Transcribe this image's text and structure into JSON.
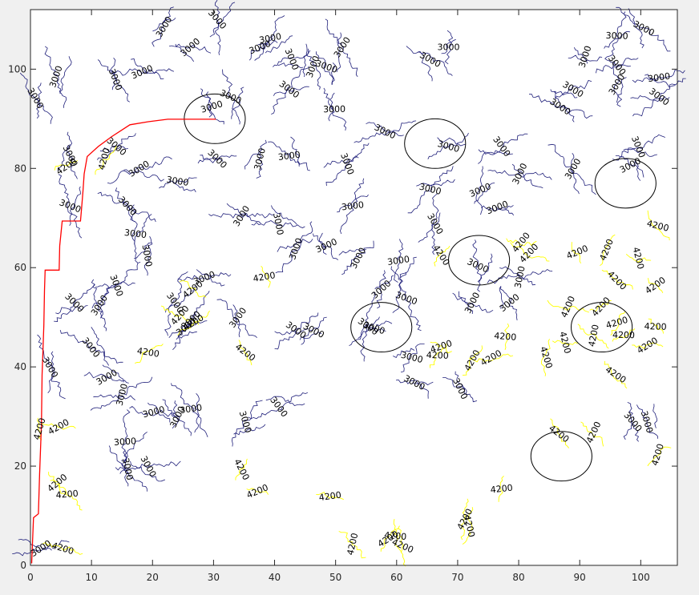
{
  "chart_data": {
    "type": "contour",
    "title": "",
    "xlabel": "",
    "ylabel": "",
    "xlim": [
      0,
      106
    ],
    "ylim": [
      0,
      112
    ],
    "xticks": [
      0,
      10,
      20,
      30,
      40,
      50,
      60,
      70,
      80,
      90,
      100
    ],
    "yticks": [
      0,
      20,
      40,
      60,
      80,
      100
    ],
    "xtick_labels": [
      "0",
      "10",
      "20",
      "30",
      "40",
      "50",
      "60",
      "70",
      "80",
      "90",
      "100"
    ],
    "ytick_labels": [
      "0",
      "20",
      "40",
      "60",
      "80",
      "100"
    ],
    "grid": false,
    "legend": "none",
    "colors": {
      "contour_3000": "#1f1f7a",
      "contour_4200": "#ffff00",
      "path": "#ff0000",
      "circles": "#000000",
      "axes_bg": "#ffffff",
      "figure_bg": "#f0f0f0"
    },
    "contour_levels": [
      3000,
      4200
    ],
    "contour_label_3000": [
      [
        21.9,
        108.5
      ],
      [
        30.6,
        110
      ],
      [
        4.2,
        98.5
      ],
      [
        0.8,
        94.1
      ],
      [
        13.9,
        97.9
      ],
      [
        18.3,
        99.4
      ],
      [
        26.2,
        104.4
      ],
      [
        29.7,
        92.4
      ],
      [
        32.8,
        94.4
      ],
      [
        37.6,
        104.4
      ],
      [
        39.3,
        106.2
      ],
      [
        42.8,
        102
      ],
      [
        46.3,
        100.5
      ],
      [
        51.1,
        104.4
      ],
      [
        48.5,
        100.5
      ],
      [
        42.4,
        95.9
      ],
      [
        49.8,
        91.9
      ],
      [
        58.1,
        87.4
      ],
      [
        68.5,
        104.4
      ],
      [
        65.5,
        101.9
      ],
      [
        68.5,
        84.4
      ],
      [
        77.2,
        84.4
      ],
      [
        90.9,
        102.5
      ],
      [
        96.1,
        100.8
      ],
      [
        96.1,
        106.7
      ],
      [
        100.5,
        108.2
      ],
      [
        6.5,
        82.5
      ],
      [
        14.1,
        84.4
      ],
      [
        17.8,
        79.9
      ],
      [
        24.1,
        77.4
      ],
      [
        30.6,
        81.9
      ],
      [
        37.6,
        81.9
      ],
      [
        42.4,
        82.5
      ],
      [
        51.9,
        80.9
      ],
      [
        52.8,
        72.4
      ],
      [
        65.5,
        75.8
      ],
      [
        73.7,
        75.6
      ],
      [
        76.5,
        72.1
      ],
      [
        88.9,
        95.9
      ],
      [
        86.8,
        92.4
      ],
      [
        96.1,
        96.9
      ],
      [
        103,
        94.4
      ],
      [
        103,
        98.3
      ],
      [
        99.6,
        84.3
      ],
      [
        98.3,
        80.6
      ],
      [
        88.9,
        79.9
      ],
      [
        6.5,
        72.4
      ],
      [
        15.9,
        72.4
      ],
      [
        17.2,
        66.8
      ],
      [
        19.1,
        62.4
      ],
      [
        34.6,
        70.4
      ],
      [
        40.6,
        68.8
      ],
      [
        43.5,
        63.8
      ],
      [
        48.5,
        64.4
      ],
      [
        53.7,
        61.9
      ],
      [
        60.3,
        61.4
      ],
      [
        57.5,
        55.6
      ],
      [
        61.6,
        53.8
      ],
      [
        66.3,
        68.8
      ],
      [
        73.3,
        60.4
      ],
      [
        80.2,
        58.1
      ],
      [
        78.5,
        52.9
      ],
      [
        80.2,
        78.9
      ],
      [
        14.1,
        56.4
      ],
      [
        11.3,
        52.4
      ],
      [
        7.2,
        52.9
      ],
      [
        23.7,
        52.9
      ],
      [
        28.5,
        57.9
      ],
      [
        26.3,
        49.4
      ],
      [
        25.5,
        48.1
      ],
      [
        34,
        49.9
      ],
      [
        43.5,
        47.4
      ],
      [
        55.3,
        48.1
      ],
      [
        62.5,
        41.9
      ],
      [
        62.9,
        36.8
      ],
      [
        70.4,
        35.6
      ],
      [
        72.4,
        52.9
      ],
      [
        9.9,
        43.9
      ],
      [
        12.5,
        37.9
      ],
      [
        15,
        34.4
      ],
      [
        20.2,
        30.9
      ],
      [
        24.1,
        29.9
      ],
      [
        26.3,
        31.5
      ],
      [
        35.2,
        28.9
      ],
      [
        40.7,
        31.9
      ],
      [
        46.4,
        47.3
      ],
      [
        56.3,
        47.8
      ],
      [
        15.5,
        24.9
      ],
      [
        15.9,
        19.4
      ],
      [
        19.3,
        19.9
      ],
      [
        3.2,
        39.9
      ],
      [
        1.7,
        3.4
      ],
      [
        98.7,
        28.9
      ],
      [
        101,
        28.9
      ]
    ],
    "contour_label_4200": [
      [
        12.1,
        81.9
      ],
      [
        5.9,
        80.4
      ],
      [
        67.3,
        62.5
      ],
      [
        80.4,
        65.1
      ],
      [
        81.7,
        62.9
      ],
      [
        89.6,
        63.1
      ],
      [
        94.4,
        63.6
      ],
      [
        99.6,
        61.9
      ],
      [
        102.8,
        68.4
      ],
      [
        96.1,
        57.4
      ],
      [
        102.4,
        56.4
      ],
      [
        88.1,
        52.1
      ],
      [
        93.5,
        52.1
      ],
      [
        97.2,
        46.4
      ],
      [
        102.4,
        48.1
      ],
      [
        101.1,
        44.3
      ],
      [
        96.1,
        48.9
      ],
      [
        92.3,
        46.3
      ],
      [
        87.6,
        44.9
      ],
      [
        84.5,
        41.9
      ],
      [
        95.9,
        38.4
      ],
      [
        67.3,
        44.1
      ],
      [
        66.7,
        42.3
      ],
      [
        72.4,
        41.3
      ],
      [
        75.5,
        41.8
      ],
      [
        77.8,
        46.1
      ],
      [
        35.2,
        42.9
      ],
      [
        38.3,
        58.1
      ],
      [
        26.7,
        48.9
      ],
      [
        19.3,
        42.9
      ],
      [
        24.5,
        50.4
      ],
      [
        26.6,
        55.6
      ],
      [
        4.6,
        27.9
      ],
      [
        1.5,
        27.5
      ],
      [
        4.4,
        16.6
      ],
      [
        6,
        14.3
      ],
      [
        34.6,
        19.3
      ],
      [
        37.2,
        14.9
      ],
      [
        49.1,
        13.9
      ],
      [
        71.2,
        9.3
      ],
      [
        71.9,
        7.9
      ],
      [
        77.2,
        15.4
      ],
      [
        86.6,
        26.5
      ],
      [
        92.3,
        26.8
      ],
      [
        59.8,
        5.9
      ],
      [
        61,
        3.9
      ],
      [
        58.6,
        5.3
      ],
      [
        5.3,
        3.4
      ],
      [
        52.8,
        4.3
      ],
      [
        102.8,
        22.3
      ]
    ],
    "path_points": [
      [
        30.4,
        89.9
      ],
      [
        22.5,
        89.9
      ],
      [
        19.3,
        89.4
      ],
      [
        16.3,
        88.8
      ],
      [
        13.3,
        86.4
      ],
      [
        11.1,
        84.4
      ],
      [
        9.3,
        82.4
      ],
      [
        8.8,
        78.9
      ],
      [
        8.6,
        75.4
      ],
      [
        8.4,
        72.4
      ],
      [
        8.2,
        69.4
      ],
      [
        5.2,
        69.4
      ],
      [
        4.8,
        64.4
      ],
      [
        4.7,
        59.5
      ],
      [
        2.4,
        59.5
      ],
      [
        2.3,
        55.4
      ],
      [
        2.2,
        48.4
      ],
      [
        1.9,
        38.4
      ],
      [
        1.8,
        28.4
      ],
      [
        1.5,
        18.4
      ],
      [
        1.3,
        10.4
      ],
      [
        0.5,
        9.6
      ],
      [
        0.4,
        6.4
      ],
      [
        0.2,
        0.4
      ]
    ],
    "circles": [
      [
        30.2,
        90,
        5
      ],
      [
        66.3,
        85,
        5
      ],
      [
        73.5,
        61.5,
        5
      ],
      [
        57.5,
        48,
        5
      ],
      [
        97.5,
        77,
        5
      ],
      [
        93.6,
        48,
        5
      ],
      [
        87,
        22,
        5
      ]
    ]
  }
}
